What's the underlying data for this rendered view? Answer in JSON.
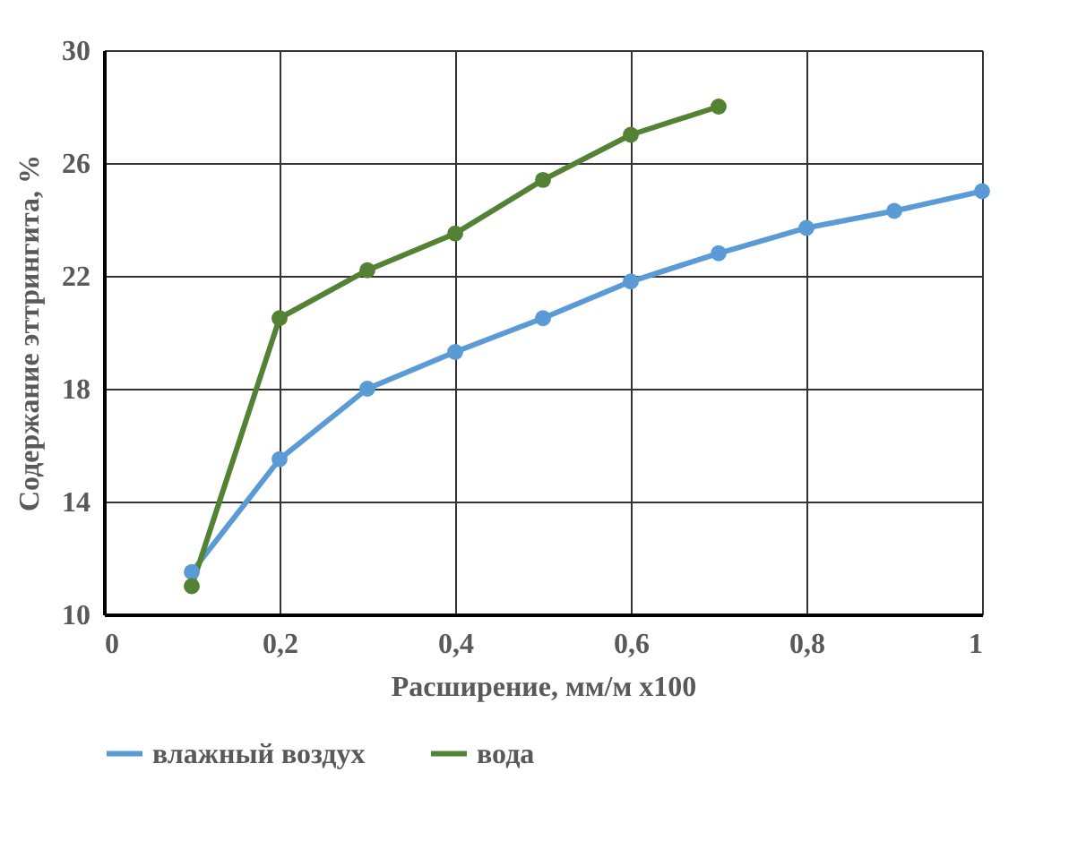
{
  "chart_data": {
    "type": "line",
    "xlabel": "Расширение, мм/м х100",
    "ylabel": "Содержание эттрингита, %",
    "series": [
      {
        "name": "влажный воздух",
        "color": "#5b9bd5",
        "x": [
          0.1,
          0.2,
          0.3,
          0.4,
          0.5,
          0.6,
          0.7,
          0.8,
          0.9,
          1.0
        ],
        "values": [
          11.5,
          15.5,
          18.0,
          19.3,
          20.5,
          21.8,
          22.8,
          23.7,
          24.3,
          25.0
        ]
      },
      {
        "name": "вода",
        "color": "#548235",
        "x": [
          0.1,
          0.2,
          0.3,
          0.4,
          0.5,
          0.6,
          0.7
        ],
        "values": [
          11.0,
          20.5,
          22.2,
          23.5,
          25.4,
          27.0,
          28.0
        ]
      }
    ],
    "xlim": [
      0,
      1
    ],
    "xticks": [
      0,
      {
        "value": 0.2,
        "label": "0,2"
      },
      {
        "value": 0.4,
        "label": "0,4"
      },
      {
        "value": 0.6,
        "label": "0,6"
      },
      {
        "value": 0.8,
        "label": "0,8"
      },
      1
    ],
    "ylim": [
      10,
      30
    ],
    "yticks": [
      10,
      14,
      18,
      22,
      26,
      30
    ],
    "grid": true,
    "legend": "bottom",
    "marker": "circle",
    "line_style": "solid"
  }
}
